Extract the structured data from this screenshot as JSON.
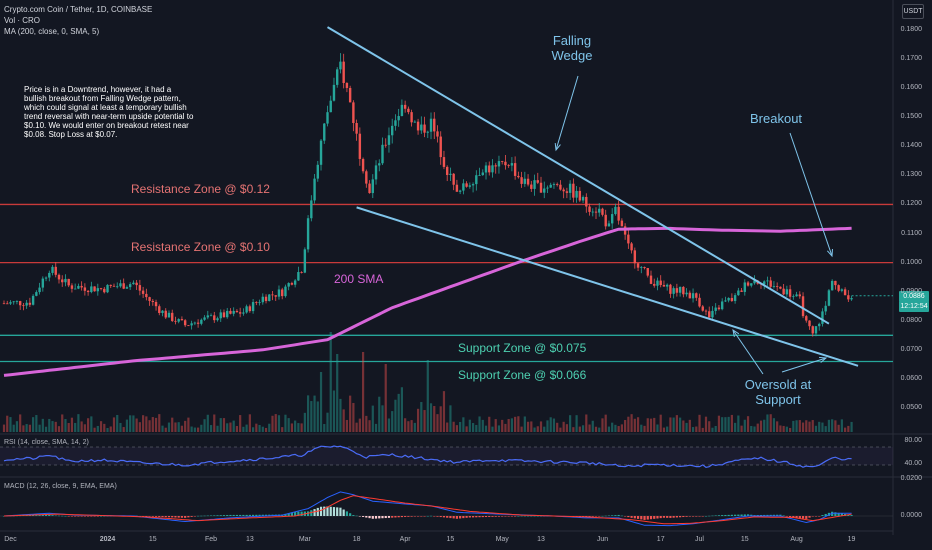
{
  "header": {
    "symbol_line": "Crypto.com Coin / Tether, 1D, COINBASE",
    "volume_label": "Vol · CRO",
    "ma_label": "MA (200, close, 0, SMA, 5)",
    "currency_button": "USDT"
  },
  "notes": {
    "analysis": "Price is in a Downtrend, however, it had a bullish breakout from Falling Wedge pattern, which could signal at least a temporary bullish trend reversal with near-term upside potential to $0.10. We would enter on breakout retest near $0.08. Stop Loss at $0.07."
  },
  "annotations": {
    "falling_wedge": "Falling Wedge",
    "breakout": "Breakout",
    "oversold": "Oversold at Support",
    "sma_label": "200 SMA",
    "resistance_1": "Resistance Zone @ $0.12",
    "resistance_2": "Resistance Zone @ $0.10",
    "support_1": "Support Zone @ $0.075",
    "support_2": "Support Zone @ $0.066"
  },
  "price_tags": {
    "last_price": "0.0886",
    "countdown": "12:12:54"
  },
  "colors": {
    "background": "#131722",
    "up": "#26a69a",
    "down": "#ef5350",
    "trendline": "#7fc4ea",
    "sma": "#d765d9",
    "resistance": "#c83a3a",
    "support": "#26a69a",
    "macd": "#2962ff",
    "signal": "#ff3b30",
    "rsi": "#4a6cf7"
  },
  "chart_data": {
    "type": "candlestick",
    "price_axis": {
      "ticks": [
        "0.1800",
        "0.1700",
        "0.1600",
        "0.1500",
        "0.1400",
        "0.1300",
        "0.1200",
        "0.1100",
        "0.1000",
        "0.0900",
        "0.0800",
        "0.0700",
        "0.0600",
        "0.0500"
      ],
      "ylim": [
        0.0405,
        0.1825
      ]
    },
    "time_axis": {
      "ticks": [
        "Dec",
        "2024",
        "15",
        "Feb",
        "13",
        "Mar",
        "18",
        "Apr",
        "15",
        "May",
        "13",
        "Jun",
        "17",
        "Jul",
        "15",
        "Aug",
        "19"
      ],
      "tick_days": [
        2,
        32,
        46,
        64,
        76,
        93,
        109,
        124,
        138,
        154,
        166,
        185,
        203,
        215,
        229,
        245,
        262
      ]
    },
    "close_anchors": [
      [
        0,
        0.086
      ],
      [
        8,
        0.0865
      ],
      [
        14,
        0.098
      ],
      [
        20,
        0.092
      ],
      [
        30,
        0.091
      ],
      [
        40,
        0.093
      ],
      [
        44,
        0.088
      ],
      [
        50,
        0.082
      ],
      [
        56,
        0.0785
      ],
      [
        60,
        0.08
      ],
      [
        66,
        0.0815
      ],
      [
        74,
        0.083
      ],
      [
        80,
        0.088
      ],
      [
        86,
        0.09
      ],
      [
        92,
        0.098
      ],
      [
        96,
        0.13
      ],
      [
        100,
        0.152
      ],
      [
        104,
        0.168
      ],
      [
        107,
        0.155
      ],
      [
        110,
        0.138
      ],
      [
        113,
        0.125
      ],
      [
        116,
        0.135
      ],
      [
        120,
        0.148
      ],
      [
        124,
        0.155
      ],
      [
        128,
        0.145
      ],
      [
        132,
        0.148
      ],
      [
        136,
        0.135
      ],
      [
        140,
        0.123
      ],
      [
        144,
        0.128
      ],
      [
        148,
        0.133
      ],
      [
        152,
        0.132
      ],
      [
        156,
        0.135
      ],
      [
        160,
        0.128
      ],
      [
        165,
        0.126
      ],
      [
        170,
        0.127
      ],
      [
        175,
        0.125
      ],
      [
        180,
        0.12
      ],
      [
        184,
        0.118
      ],
      [
        187,
        0.112
      ],
      [
        189,
        0.118
      ],
      [
        193,
        0.105
      ],
      [
        197,
        0.098
      ],
      [
        201,
        0.093
      ],
      [
        205,
        0.091
      ],
      [
        210,
        0.09
      ],
      [
        214,
        0.088
      ],
      [
        218,
        0.081
      ],
      [
        222,
        0.086
      ],
      [
        226,
        0.088
      ],
      [
        230,
        0.0935
      ],
      [
        234,
        0.094
      ],
      [
        238,
        0.092
      ],
      [
        242,
        0.09
      ],
      [
        246,
        0.087
      ],
      [
        248,
        0.079
      ],
      [
        250,
        0.075
      ],
      [
        252,
        0.08
      ],
      [
        254,
        0.085
      ],
      [
        256,
        0.095
      ],
      [
        258,
        0.09
      ],
      [
        260,
        0.089
      ],
      [
        262,
        0.0886
      ]
    ],
    "sma200_points": [
      [
        0,
        0.0612
      ],
      [
        40,
        0.0662
      ],
      [
        80,
        0.07
      ],
      [
        100,
        0.0735
      ],
      [
        120,
        0.0845
      ],
      [
        140,
        0.0925
      ],
      [
        160,
        0.1005
      ],
      [
        180,
        0.108
      ],
      [
        190,
        0.1115
      ],
      [
        205,
        0.1118
      ],
      [
        220,
        0.1112
      ],
      [
        240,
        0.1108
      ],
      [
        262,
        0.1118
      ]
    ],
    "wedge_lines": {
      "upper": [
        [
          100,
          0.181
        ],
        [
          255,
          0.079
        ]
      ],
      "lower": [
        [
          109,
          0.119
        ],
        [
          264,
          0.0645
        ]
      ]
    },
    "horizontal_zones": {
      "resistance": [
        0.12,
        0.1
      ],
      "support": [
        0.075,
        0.066
      ]
    },
    "rsi": {
      "label": "RSI (14, close, SMA, 14, 2)",
      "ticks": [
        "80.00",
        "40.00"
      ],
      "anchors": [
        [
          0,
          52
        ],
        [
          10,
          55
        ],
        [
          14,
          62
        ],
        [
          20,
          48
        ],
        [
          30,
          51
        ],
        [
          44,
          44
        ],
        [
          50,
          42
        ],
        [
          56,
          40
        ],
        [
          66,
          47
        ],
        [
          80,
          54
        ],
        [
          92,
          62
        ],
        [
          98,
          80
        ],
        [
          104,
          82
        ],
        [
          108,
          70
        ],
        [
          112,
          58
        ],
        [
          120,
          63
        ],
        [
          128,
          56
        ],
        [
          140,
          46
        ],
        [
          150,
          51
        ],
        [
          160,
          49
        ],
        [
          170,
          47
        ],
        [
          180,
          45
        ],
        [
          185,
          42
        ],
        [
          192,
          36
        ],
        [
          200,
          41
        ],
        [
          210,
          39
        ],
        [
          218,
          37
        ],
        [
          226,
          49
        ],
        [
          234,
          55
        ],
        [
          242,
          45
        ],
        [
          248,
          36
        ],
        [
          252,
          38
        ],
        [
          256,
          56
        ],
        [
          262,
          52
        ]
      ]
    },
    "macd": {
      "label": "MACD (12, 26, close, 9, EMA, EMA)",
      "ticks": [
        "0.0200",
        "0.0000"
      ],
      "ylim": [
        -0.011,
        0.0215
      ],
      "macd_anchors": [
        [
          0,
          0.0
        ],
        [
          14,
          0.0015
        ],
        [
          22,
          0.0005
        ],
        [
          40,
          0.0
        ],
        [
          56,
          -0.003
        ],
        [
          70,
          -0.001
        ],
        [
          86,
          0.0005
        ],
        [
          94,
          0.004
        ],
        [
          100,
          0.01
        ],
        [
          104,
          0.013
        ],
        [
          108,
          0.0115
        ],
        [
          114,
          0.008
        ],
        [
          124,
          0.0065
        ],
        [
          132,
          0.0055
        ],
        [
          140,
          0.002
        ],
        [
          156,
          0.0008
        ],
        [
          170,
          0.0
        ],
        [
          180,
          -0.001
        ],
        [
          190,
          -0.001
        ],
        [
          198,
          -0.005
        ],
        [
          206,
          -0.0052
        ],
        [
          214,
          -0.004
        ],
        [
          222,
          -0.002
        ],
        [
          230,
          0.0
        ],
        [
          240,
          0.0
        ],
        [
          248,
          -0.0035
        ],
        [
          252,
          -0.002
        ],
        [
          256,
          0.0015
        ],
        [
          262,
          0.0015
        ]
      ],
      "signal_anchors": [
        [
          0,
          0.0
        ],
        [
          16,
          0.001
        ],
        [
          26,
          0.0005
        ],
        [
          44,
          -0.0005
        ],
        [
          60,
          -0.0025
        ],
        [
          74,
          -0.0012
        ],
        [
          90,
          0.0
        ],
        [
          98,
          0.003
        ],
        [
          104,
          0.0085
        ],
        [
          108,
          0.011
        ],
        [
          114,
          0.0095
        ],
        [
          124,
          0.007
        ],
        [
          134,
          0.005
        ],
        [
          144,
          0.0025
        ],
        [
          160,
          0.0005
        ],
        [
          180,
          -0.0005
        ],
        [
          194,
          -0.002
        ],
        [
          204,
          -0.0042
        ],
        [
          212,
          -0.004
        ],
        [
          222,
          -0.0025
        ],
        [
          232,
          -0.0005
        ],
        [
          244,
          -0.0008
        ],
        [
          250,
          -0.0025
        ],
        [
          256,
          -0.0008
        ],
        [
          262,
          0.001
        ]
      ]
    }
  }
}
